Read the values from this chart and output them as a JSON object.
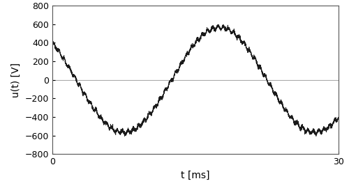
{
  "title": "",
  "xlabel": "t [ms]",
  "ylabel": "u(t) [V]",
  "xlim": [
    0,
    30
  ],
  "ylim": [
    -800,
    800
  ],
  "yticks": [
    -800,
    -600,
    -400,
    -200,
    0,
    200,
    400,
    600,
    800
  ],
  "xticks": [
    0,
    30
  ],
  "frequency_hz": 50,
  "amplitude": 565.7,
  "noise_amplitude": 18,
  "noise_frequency_hz": 1800,
  "num_points": 4000,
  "phase_deg": 135,
  "line_color": "#1a1a1a",
  "line_width": 0.6,
  "background_color": "#ffffff",
  "grid_color": "#aaaaaa",
  "fig_width": 5.0,
  "fig_height": 2.7,
  "dpi": 100
}
